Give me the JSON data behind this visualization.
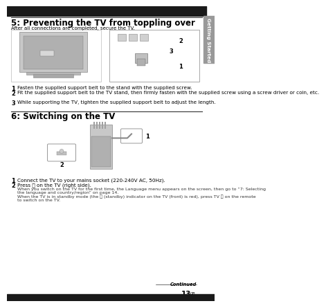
{
  "bg_color": "#ffffff",
  "title1": "5: Preventing the TV from toppling over",
  "subtitle1": "After all connections are completed, secure the TV.",
  "section1_items": [
    [
      "1",
      "Fasten the supplied support belt to the stand with the supplied screw."
    ],
    [
      "2",
      "Fit the supplied support belt to the TV stand, then firmly fasten with the supplied screw using a screw driver or coin, etc."
    ],
    [
      "3",
      "While supporting the TV, tighten the supplied support belt to adjust the length."
    ]
  ],
  "title2": "6: Switching on the TV",
  "section2_item1": "Connect the TV to your mains socket (220-240V AC, 50Hz).",
  "section2_item2": "Press ⓞ on the TV (right side).",
  "section2_subtext_lines": [
    "When you switch on the TV for the first time, the Language menu appears on the screen, then go to “7: Selecting",
    "the language and country/region” on page 14.",
    "When the TV is in standby mode (the ⓞ (standby) indicator on the TV (front) is red), press TV ⓞ on the remote",
    "to switch on the TV."
  ],
  "continued_text": "Continued",
  "page_number": "13",
  "page_suffix": "GB",
  "sidebar_text": "Getting Started",
  "top_bar_color": "#1a1a1a",
  "sidebar_color": "#999999",
  "bottom_bar_color": "#1a1a1a",
  "rule_color": "#333333",
  "title_fontsize": 8.5,
  "body_fontsize": 5.2,
  "number_fontsize": 6.0,
  "small_fontsize": 4.5,
  "sidebar_fontsize": 5.2,
  "page_num_fontsize": 7.5,
  "img1_color": "#d0d0d0",
  "img2_color": "#cccccc"
}
